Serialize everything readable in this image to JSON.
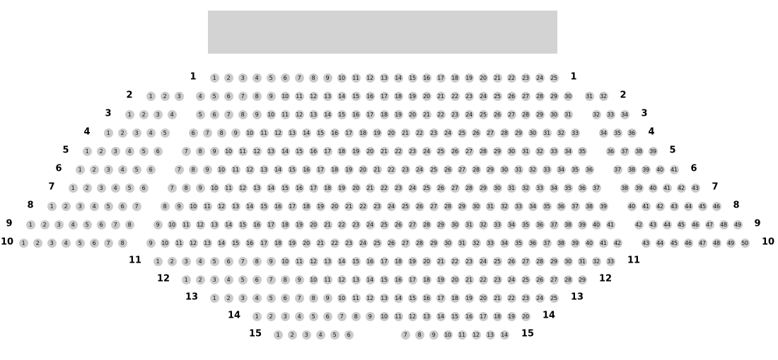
{
  "stage": {
    "color": "#d3d3d3"
  },
  "seat_color": "#cbcbcb",
  "rows": [
    {
      "label": "1",
      "sections": [
        [
          1,
          25
        ]
      ]
    },
    {
      "label": "2",
      "sections": [
        [
          1,
          3
        ],
        [
          4,
          30
        ],
        [
          31,
          32
        ]
      ]
    },
    {
      "label": "3",
      "sections": [
        [
          1,
          4
        ],
        [
          5,
          31
        ],
        [
          32,
          34
        ]
      ]
    },
    {
      "label": "4",
      "sections": [
        [
          1,
          5
        ],
        [
          6,
          33
        ],
        [
          34,
          36
        ]
      ]
    },
    {
      "label": "5",
      "sections": [
        [
          1,
          6
        ],
        [
          7,
          35
        ],
        [
          36,
          39
        ]
      ]
    },
    {
      "label": "6",
      "sections": [
        [
          1,
          6
        ],
        [
          7,
          36
        ],
        [
          37,
          41
        ]
      ]
    },
    {
      "label": "7",
      "sections": [
        [
          1,
          6
        ],
        [
          7,
          37
        ],
        [
          38,
          43
        ]
      ]
    },
    {
      "label": "8",
      "sections": [
        [
          1,
          7
        ],
        [
          8,
          39
        ],
        [
          40,
          46
        ]
      ]
    },
    {
      "label": "9",
      "sections": [
        [
          1,
          8
        ],
        [
          9,
          41
        ],
        [
          42,
          49
        ]
      ]
    },
    {
      "label": "10",
      "sections": [
        [
          1,
          8
        ],
        [
          9,
          42
        ],
        [
          43,
          50
        ]
      ]
    },
    {
      "label": "11",
      "sections": [
        [
          1,
          33
        ]
      ]
    },
    {
      "label": "12",
      "sections": [
        [
          1,
          29
        ]
      ]
    },
    {
      "label": "13",
      "sections": [
        [
          1,
          25
        ]
      ]
    },
    {
      "label": "14",
      "sections": [
        [
          1,
          20
        ]
      ]
    },
    {
      "label": "15",
      "sections": [
        [
          1,
          6
        ],
        [
          7,
          14
        ]
      ]
    }
  ]
}
